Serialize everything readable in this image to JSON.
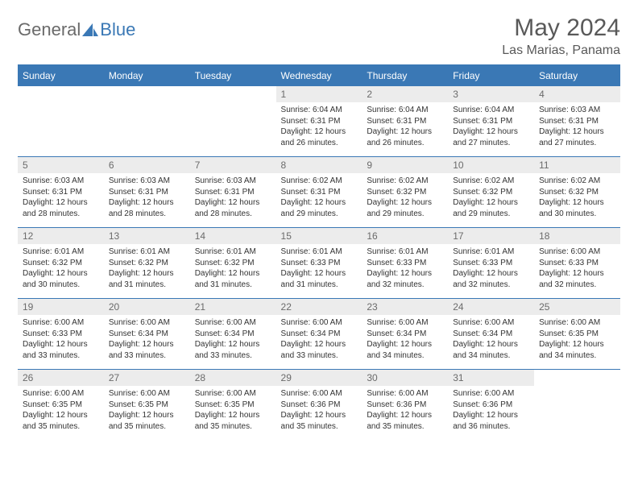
{
  "logo": {
    "part1": "General",
    "part2": "Blue"
  },
  "title": "May 2024",
  "location": "Las Marias, Panama",
  "weekdays": [
    "Sunday",
    "Monday",
    "Tuesday",
    "Wednesday",
    "Thursday",
    "Friday",
    "Saturday"
  ],
  "colors": {
    "header_bg": "#3a78b5",
    "header_text": "#ffffff",
    "daynum_bg": "#ececec",
    "daynum_text": "#6b6b6b",
    "border": "#3a78b5",
    "title_text": "#595959",
    "logo_gray": "#6a6a6a",
    "logo_blue": "#3a78b5"
  },
  "typography": {
    "title_fontsize": 30,
    "location_fontsize": 16,
    "weekday_fontsize": 12,
    "daynum_fontsize": 12,
    "body_fontsize": 10
  },
  "weeks": [
    [
      {
        "n": "",
        "sr": "",
        "ss": "",
        "dl": ""
      },
      {
        "n": "",
        "sr": "",
        "ss": "",
        "dl": ""
      },
      {
        "n": "",
        "sr": "",
        "ss": "",
        "dl": ""
      },
      {
        "n": "1",
        "sr": "6:04 AM",
        "ss": "6:31 PM",
        "dl": "12 hours and 26 minutes."
      },
      {
        "n": "2",
        "sr": "6:04 AM",
        "ss": "6:31 PM",
        "dl": "12 hours and 26 minutes."
      },
      {
        "n": "3",
        "sr": "6:04 AM",
        "ss": "6:31 PM",
        "dl": "12 hours and 27 minutes."
      },
      {
        "n": "4",
        "sr": "6:03 AM",
        "ss": "6:31 PM",
        "dl": "12 hours and 27 minutes."
      }
    ],
    [
      {
        "n": "5",
        "sr": "6:03 AM",
        "ss": "6:31 PM",
        "dl": "12 hours and 28 minutes."
      },
      {
        "n": "6",
        "sr": "6:03 AM",
        "ss": "6:31 PM",
        "dl": "12 hours and 28 minutes."
      },
      {
        "n": "7",
        "sr": "6:03 AM",
        "ss": "6:31 PM",
        "dl": "12 hours and 28 minutes."
      },
      {
        "n": "8",
        "sr": "6:02 AM",
        "ss": "6:31 PM",
        "dl": "12 hours and 29 minutes."
      },
      {
        "n": "9",
        "sr": "6:02 AM",
        "ss": "6:32 PM",
        "dl": "12 hours and 29 minutes."
      },
      {
        "n": "10",
        "sr": "6:02 AM",
        "ss": "6:32 PM",
        "dl": "12 hours and 29 minutes."
      },
      {
        "n": "11",
        "sr": "6:02 AM",
        "ss": "6:32 PM",
        "dl": "12 hours and 30 minutes."
      }
    ],
    [
      {
        "n": "12",
        "sr": "6:01 AM",
        "ss": "6:32 PM",
        "dl": "12 hours and 30 minutes."
      },
      {
        "n": "13",
        "sr": "6:01 AM",
        "ss": "6:32 PM",
        "dl": "12 hours and 31 minutes."
      },
      {
        "n": "14",
        "sr": "6:01 AM",
        "ss": "6:32 PM",
        "dl": "12 hours and 31 minutes."
      },
      {
        "n": "15",
        "sr": "6:01 AM",
        "ss": "6:33 PM",
        "dl": "12 hours and 31 minutes."
      },
      {
        "n": "16",
        "sr": "6:01 AM",
        "ss": "6:33 PM",
        "dl": "12 hours and 32 minutes."
      },
      {
        "n": "17",
        "sr": "6:01 AM",
        "ss": "6:33 PM",
        "dl": "12 hours and 32 minutes."
      },
      {
        "n": "18",
        "sr": "6:00 AM",
        "ss": "6:33 PM",
        "dl": "12 hours and 32 minutes."
      }
    ],
    [
      {
        "n": "19",
        "sr": "6:00 AM",
        "ss": "6:33 PM",
        "dl": "12 hours and 33 minutes."
      },
      {
        "n": "20",
        "sr": "6:00 AM",
        "ss": "6:34 PM",
        "dl": "12 hours and 33 minutes."
      },
      {
        "n": "21",
        "sr": "6:00 AM",
        "ss": "6:34 PM",
        "dl": "12 hours and 33 minutes."
      },
      {
        "n": "22",
        "sr": "6:00 AM",
        "ss": "6:34 PM",
        "dl": "12 hours and 33 minutes."
      },
      {
        "n": "23",
        "sr": "6:00 AM",
        "ss": "6:34 PM",
        "dl": "12 hours and 34 minutes."
      },
      {
        "n": "24",
        "sr": "6:00 AM",
        "ss": "6:34 PM",
        "dl": "12 hours and 34 minutes."
      },
      {
        "n": "25",
        "sr": "6:00 AM",
        "ss": "6:35 PM",
        "dl": "12 hours and 34 minutes."
      }
    ],
    [
      {
        "n": "26",
        "sr": "6:00 AM",
        "ss": "6:35 PM",
        "dl": "12 hours and 35 minutes."
      },
      {
        "n": "27",
        "sr": "6:00 AM",
        "ss": "6:35 PM",
        "dl": "12 hours and 35 minutes."
      },
      {
        "n": "28",
        "sr": "6:00 AM",
        "ss": "6:35 PM",
        "dl": "12 hours and 35 minutes."
      },
      {
        "n": "29",
        "sr": "6:00 AM",
        "ss": "6:36 PM",
        "dl": "12 hours and 35 minutes."
      },
      {
        "n": "30",
        "sr": "6:00 AM",
        "ss": "6:36 PM",
        "dl": "12 hours and 35 minutes."
      },
      {
        "n": "31",
        "sr": "6:00 AM",
        "ss": "6:36 PM",
        "dl": "12 hours and 36 minutes."
      },
      {
        "n": "",
        "sr": "",
        "ss": "",
        "dl": ""
      }
    ]
  ],
  "labels": {
    "sunrise": "Sunrise:",
    "sunset": "Sunset:",
    "daylight": "Daylight:"
  }
}
